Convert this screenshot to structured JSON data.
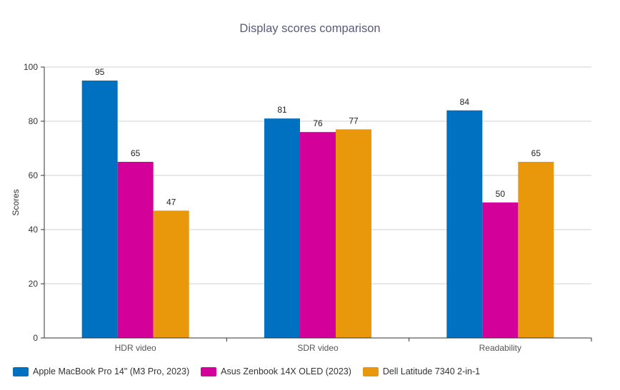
{
  "chart_data": {
    "type": "bar",
    "title": "Display scores comparison",
    "ylabel": "Scores",
    "xlabel": "",
    "categories": [
      "HDR video",
      "SDR video",
      "Readability"
    ],
    "series": [
      {
        "name": "Apple MacBook Pro 14\" (M3 Pro, 2023)",
        "color": "#0070c0",
        "values": [
          95,
          81,
          84
        ]
      },
      {
        "name": "Asus Zenbook 14X OLED (2023)",
        "color": "#d4009a",
        "values": [
          65,
          76,
          50
        ]
      },
      {
        "name": "Dell Latitude 7340 2-in-1",
        "color": "#e8980a",
        "values": [
          47,
          77,
          65
        ]
      }
    ],
    "ylim": [
      0,
      100
    ],
    "yticks": [
      0,
      20,
      40,
      60,
      80,
      100
    ],
    "grid": true,
    "legend": "bottom-left",
    "data_labels": true
  }
}
